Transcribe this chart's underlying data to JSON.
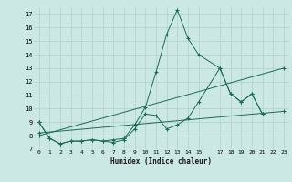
{
  "xlabel": "Humidex (Indice chaleur)",
  "ylabel": "",
  "bg_color": "#cce8e4",
  "grid_color": "#b0d0cc",
  "line_color": "#1a6b5a",
  "xlim": [
    -0.5,
    23.5
  ],
  "ylim": [
    7,
    17.5
  ],
  "xticks": [
    0,
    1,
    2,
    3,
    4,
    5,
    6,
    7,
    8,
    9,
    10,
    11,
    12,
    13,
    14,
    15,
    17,
    18,
    19,
    20,
    21,
    22,
    23
  ],
  "yticks": [
    7,
    8,
    9,
    10,
    11,
    12,
    13,
    14,
    15,
    16,
    17
  ],
  "series": [
    {
      "x": [
        0,
        1,
        2,
        3,
        4,
        5,
        6,
        7,
        8,
        9,
        10,
        11,
        12,
        13,
        14,
        15,
        17,
        18,
        19,
        20,
        21
      ],
      "y": [
        9.0,
        7.8,
        7.4,
        7.6,
        7.6,
        7.7,
        7.6,
        7.7,
        7.8,
        8.8,
        10.1,
        12.7,
        15.5,
        17.3,
        15.2,
        14.0,
        13.0,
        11.1,
        10.5,
        11.1,
        9.6
      ]
    },
    {
      "x": [
        0,
        1,
        2,
        3,
        4,
        5,
        6,
        7,
        8,
        9,
        10,
        11,
        12,
        13,
        14,
        15,
        17,
        18,
        19,
        20,
        21
      ],
      "y": [
        9.0,
        7.8,
        7.4,
        7.6,
        7.6,
        7.7,
        7.6,
        7.5,
        7.7,
        8.5,
        9.6,
        9.5,
        8.5,
        8.8,
        9.3,
        10.5,
        13.0,
        11.1,
        10.5,
        11.1,
        9.6
      ]
    },
    {
      "x": [
        0,
        23
      ],
      "y": [
        8.2,
        9.8
      ]
    },
    {
      "x": [
        0,
        23
      ],
      "y": [
        8.0,
        13.0
      ]
    }
  ]
}
